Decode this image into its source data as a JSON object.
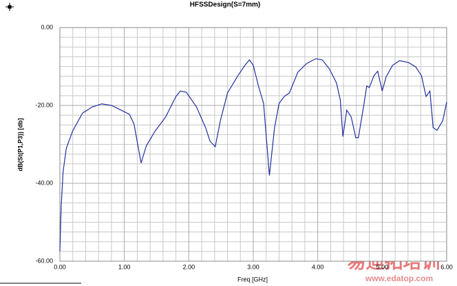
{
  "chart_data": {
    "type": "line",
    "title": "HFSSDesign(S=7mm)",
    "x_label": "Freq [GHz]",
    "y_label": "dB(St(P1,P3)) [db]",
    "color": "#1f2f9f",
    "grid": true,
    "xlim": [
      0,
      6
    ],
    "ylim": [
      -60,
      0
    ],
    "xticks": [
      {
        "value": 0,
        "label": "0.00"
      },
      {
        "value": 1,
        "label": "1.00"
      },
      {
        "value": 2,
        "label": "2.00"
      },
      {
        "value": 3,
        "label": "3.00"
      },
      {
        "value": 4,
        "label": "4.00"
      },
      {
        "value": 5,
        "label": "5.00"
      },
      {
        "value": 6,
        "label": "6.00"
      }
    ],
    "yticks": [
      {
        "value": 0,
        "label": "0.00"
      },
      {
        "value": -20,
        "label": "-20.00"
      },
      {
        "value": -40,
        "label": "-40.00"
      },
      {
        "value": -60,
        "label": "-60.00"
      }
    ],
    "x": [
      0,
      0.02,
      0.05,
      0.1,
      0.2,
      0.35,
      0.5,
      0.65,
      0.8,
      0.95,
      1.08,
      1.15,
      1.26,
      1.34,
      1.48,
      1.64,
      1.8,
      1.87,
      1.96,
      2.12,
      2.26,
      2.33,
      2.41,
      2.49,
      2.6,
      2.76,
      2.87,
      2.94,
      3.0,
      3.08,
      3.16,
      3.25,
      3.33,
      3.4,
      3.48,
      3.56,
      3.69,
      3.83,
      3.97,
      4.07,
      4.18,
      4.29,
      4.35,
      4.39,
      4.45,
      4.52,
      4.59,
      4.63,
      4.71,
      4.76,
      4.8,
      4.87,
      4.93,
      5.0,
      5.06,
      5.16,
      5.27,
      5.41,
      5.52,
      5.61,
      5.68,
      5.74,
      5.79,
      5.85,
      5.94,
      6.0
    ],
    "values": [
      -57.5,
      -46,
      -37,
      -31,
      -26.5,
      -22,
      -20.4,
      -19.6,
      -20,
      -21.2,
      -22.3,
      -24.8,
      -34.8,
      -30.4,
      -26.5,
      -23,
      -17.7,
      -16.3,
      -16.6,
      -20.4,
      -25.7,
      -29.2,
      -30.6,
      -23.9,
      -16.8,
      -12.4,
      -9.7,
      -8.3,
      -9.7,
      -15,
      -19.5,
      -38,
      -25.7,
      -19.5,
      -17.7,
      -16.8,
      -11.5,
      -9.2,
      -8,
      -8.3,
      -10.6,
      -14.2,
      -18.6,
      -28,
      -21.2,
      -23,
      -28.3,
      -28.3,
      -20.4,
      -15,
      -15.4,
      -12.4,
      -11.2,
      -16.3,
      -12.7,
      -9.7,
      -8.5,
      -9,
      -10.1,
      -12.4,
      -17.7,
      -16.3,
      -25.7,
      -26.4,
      -23.9,
      -19.1
    ]
  },
  "watermark": {
    "brand": "易迪拓培训",
    "url": "www.edatop.com"
  }
}
